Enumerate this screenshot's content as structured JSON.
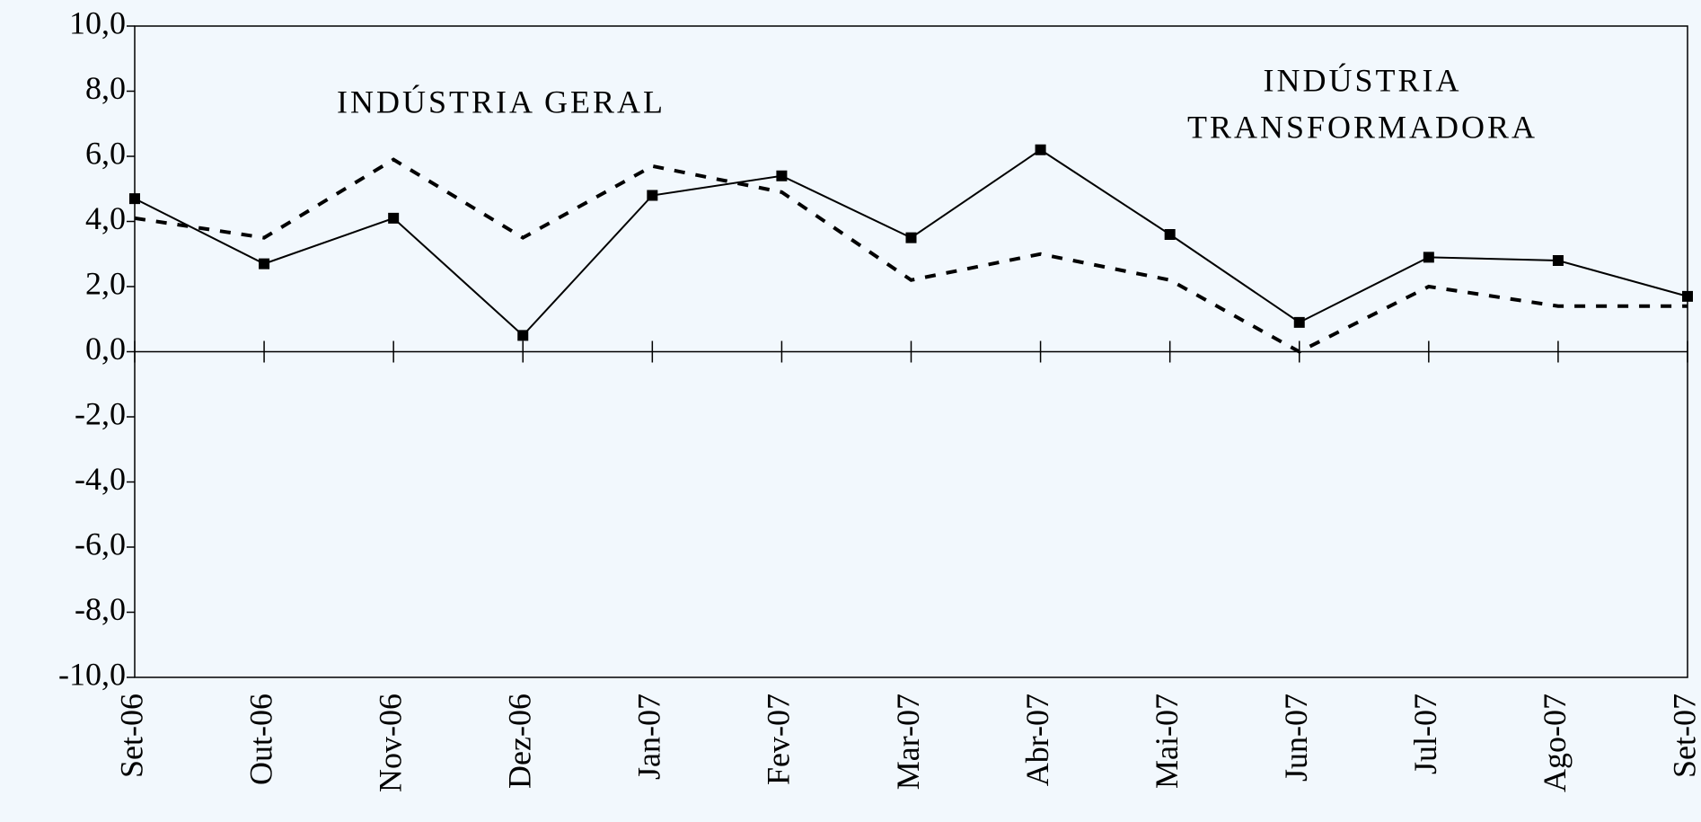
{
  "chart_data": {
    "type": "line",
    "categories": [
      "Set-06",
      "Out-06",
      "Nov-06",
      "Dez-06",
      "Jan-07",
      "Fev-07",
      "Mar-07",
      "Abr-07",
      "Mai-07",
      "Jun-07",
      "Jul-07",
      "Ago-07",
      "Set-07"
    ],
    "series": [
      {
        "color": "#000000",
        "dash": false,
        "markers": true,
        "values": [
          4.7,
          2.7,
          4.1,
          0.5,
          4.8,
          5.4,
          3.5,
          6.2,
          3.6,
          0.9,
          2.9,
          2.8,
          1.7
        ]
      },
      {
        "color": "#000000",
        "dash": true,
        "markers": false,
        "values": [
          4.1,
          3.5,
          5.9,
          3.5,
          5.7,
          4.9,
          2.2,
          3.0,
          2.2,
          0.0,
          2.0,
          1.4,
          1.4
        ]
      }
    ],
    "annotations": [
      [
        "INDÚSTRIA GERAL"
      ],
      [
        "INDÚSTRIA",
        "TRANSFORMADORA"
      ]
    ],
    "ylim": [
      -10,
      10
    ],
    "yticks": [
      {
        "value": -10,
        "label": "-10,0"
      },
      {
        "value": -8,
        "label": "-8,0"
      },
      {
        "value": -6,
        "label": "-6,0"
      },
      {
        "value": -4,
        "label": "-4,0"
      },
      {
        "value": -2,
        "label": "-2,0"
      },
      {
        "value": 0,
        "label": "0,0"
      },
      {
        "value": 2,
        "label": "2,0"
      },
      {
        "value": 4,
        "label": "4,0"
      },
      {
        "value": 6,
        "label": "6,0"
      },
      {
        "value": 8,
        "label": "8,0"
      },
      {
        "value": 10,
        "label": "10,0"
      }
    ],
    "grid": false
  }
}
